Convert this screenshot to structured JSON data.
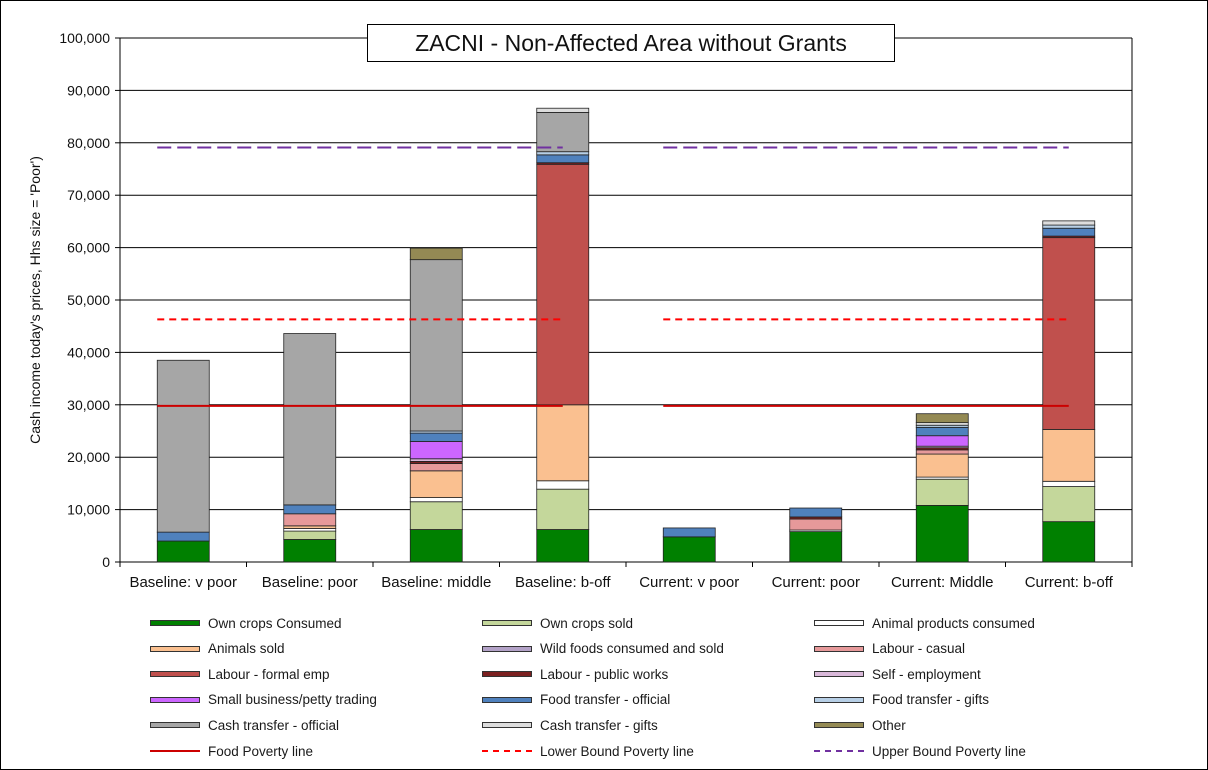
{
  "chart_data": {
    "type": "bar",
    "stacked": true,
    "title": "ZACNI - Non-Affected Area without Grants",
    "ylabel": "Cash income today's prices, Hhs size = 'Poor')",
    "xlabel": "",
    "ylim": [
      0,
      100000
    ],
    "yticks": [
      "0",
      "10,000",
      "20,000",
      "30,000",
      "40,000",
      "50,000",
      "60,000",
      "70,000",
      "80,000",
      "90,000",
      "100,000"
    ],
    "grid": true,
    "legend_position": "bottom",
    "categories": [
      "Baseline: v poor",
      "Baseline: poor",
      "Baseline: middle",
      "Baseline: b-off",
      "Current: v poor",
      "Current: poor",
      "Current: Middle",
      "Current: b-off"
    ],
    "series": [
      {
        "name": "Own crops Consumed",
        "color": "#008000",
        "values": [
          4000,
          4300,
          6200,
          6200,
          4800,
          5800,
          10800,
          7700
        ]
      },
      {
        "name": "Own crops sold",
        "color": "#c4d79b",
        "values": [
          0,
          1600,
          5300,
          7700,
          0,
          0,
          5000,
          6700
        ]
      },
      {
        "name": "Animal products consumed",
        "color": "#ffffff",
        "values": [
          0,
          500,
          800,
          1600,
          0,
          300,
          400,
          1000
        ]
      },
      {
        "name": "Animals sold",
        "color": "#fac090",
        "values": [
          0,
          500,
          5100,
          14500,
          0,
          0,
          4400,
          9900
        ]
      },
      {
        "name": "Wild foods consumed and sold",
        "color": "#b3a2c7",
        "values": [
          0,
          0,
          0,
          0,
          0,
          0,
          0,
          0
        ]
      },
      {
        "name": "Labour - casual",
        "color": "#e6999a",
        "values": [
          0,
          2300,
          1400,
          0,
          0,
          2100,
          800,
          0
        ]
      },
      {
        "name": "Labour - formal emp",
        "color": "#c0504d",
        "values": [
          0,
          0,
          0,
          45900,
          0,
          0,
          0,
          36600
        ]
      },
      {
        "name": "Labour - public works",
        "color": "#7b2020",
        "values": [
          0,
          0,
          400,
          300,
          0,
          400,
          400,
          300
        ]
      },
      {
        "name": "Self - employment",
        "color": "#d9b8d9",
        "values": [
          0,
          0,
          500,
          0,
          0,
          0,
          300,
          0
        ]
      },
      {
        "name": "Small business/petty trading",
        "color": "#cc66ff",
        "values": [
          0,
          0,
          3300,
          0,
          0,
          0,
          2000,
          0
        ]
      },
      {
        "name": "Food transfer - official",
        "color": "#4f81bd",
        "values": [
          1700,
          1700,
          1600,
          1500,
          1700,
          1700,
          1600,
          1500
        ]
      },
      {
        "name": "Food transfer - gifts",
        "color": "#b7cfe6",
        "values": [
          0,
          0,
          400,
          600,
          0,
          0,
          400,
          600
        ]
      },
      {
        "name": "Cash transfer - official",
        "color": "#a6a6a6",
        "values": [
          32800,
          32700,
          32700,
          7500,
          0,
          0,
          0,
          0
        ]
      },
      {
        "name": "Cash transfer - gifts",
        "color": "#dddddd",
        "values": [
          0,
          0,
          0,
          800,
          0,
          0,
          500,
          800
        ]
      },
      {
        "name": "Other",
        "color": "#948a54",
        "values": [
          0,
          0,
          2200,
          0,
          0,
          0,
          1700,
          0
        ]
      }
    ],
    "lines": [
      {
        "name": "Food Poverty line",
        "color": "#cc0000",
        "style": "solid",
        "value": 29800
      },
      {
        "name": "Lower Bound Poverty line",
        "color": "#ff0000",
        "style": "dashed",
        "value": 46300
      },
      {
        "name": "Upper Bound Poverty line",
        "color": "#7030a0",
        "style": "dashed",
        "value": 79100
      }
    ]
  }
}
